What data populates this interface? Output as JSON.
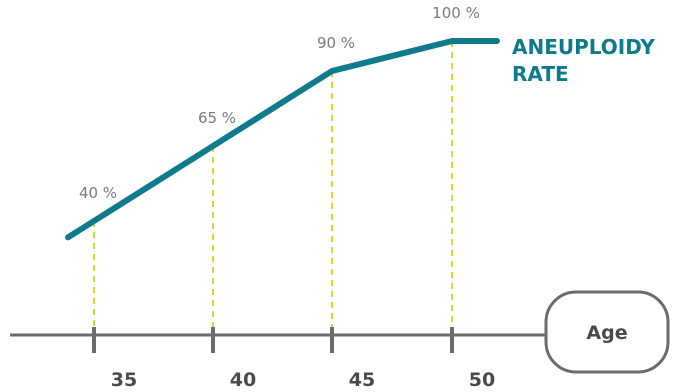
{
  "chart_data": {
    "type": "line",
    "x": [
      35,
      40,
      45,
      50
    ],
    "series": [
      {
        "name": "ANEUPLOIDY RATE",
        "values": [
          40,
          65,
          90,
          100
        ],
        "color": "#0e7a8c"
      }
    ],
    "data_labels": [
      "40 %",
      "65 %",
      "90 %",
      "100 %"
    ],
    "tick_labels": [
      "35",
      "40",
      "45",
      "50"
    ],
    "series_label_lines": [
      "ANEUPLOIDY",
      "RATE"
    ],
    "xlabel": "Age",
    "ylabel": "",
    "grid": false,
    "colors": {
      "line": "#0e7a8c",
      "guide": "#d4d92a",
      "axis": "#6b6b6b",
      "text": "#4a4a4a",
      "label": "#7a7a7a"
    }
  }
}
